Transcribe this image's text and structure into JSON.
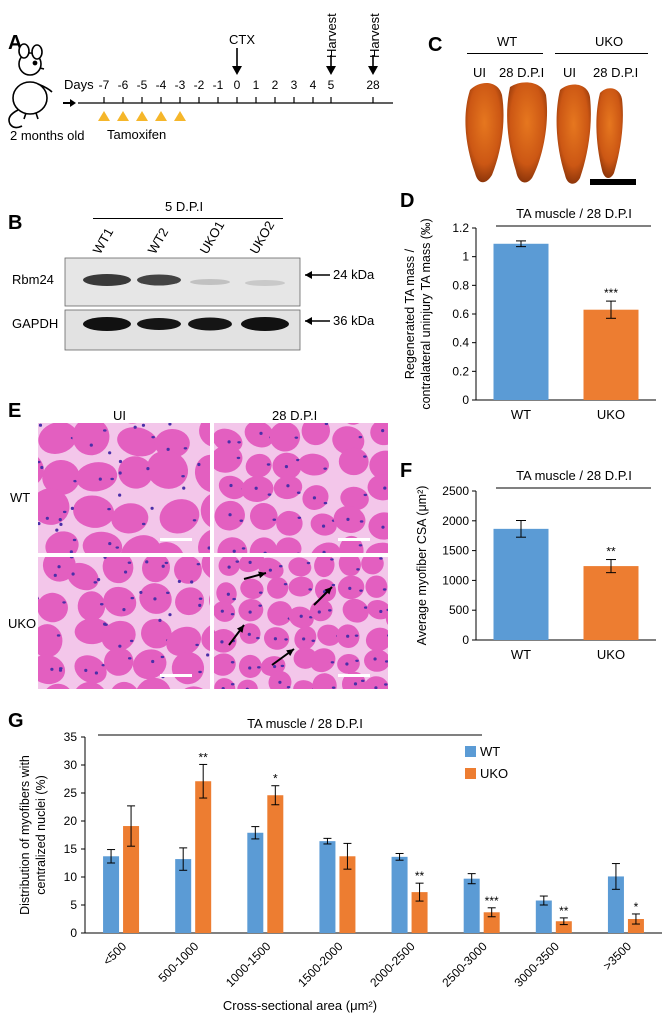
{
  "panel_letters": {
    "a": "A",
    "b": "B",
    "c": "C",
    "d": "D",
    "e": "E",
    "f": "F",
    "g": "G"
  },
  "panel_a": {
    "age": "2 months old",
    "days_label": "Days",
    "days": [
      "-7",
      "-6",
      "-5",
      "-4",
      "-3",
      "-2",
      "-1",
      "0",
      "1",
      "2",
      "3",
      "4",
      "5",
      "28"
    ],
    "treatment": "Tamoxifen",
    "ctx_label": "CTX",
    "harvest_1": "Harvest",
    "harvest_2": "Harvest",
    "colors": {
      "tamoxifen_marker": "#f5b62a"
    }
  },
  "panel_b": {
    "header": "5 D.P.I",
    "lanes": [
      "WT1",
      "WT2",
      "UKO1",
      "UKO2"
    ],
    "rows": [
      "Rbm24",
      "GAPDH"
    ],
    "sizes": [
      "24 kDa",
      "36 kDa"
    ]
  },
  "panel_c": {
    "groups": [
      "WT",
      "UKO"
    ],
    "conditions": [
      "UI",
      "28 D.P.I",
      "UI",
      "28 D.P.I"
    ],
    "colors": {
      "muscle": "#d4621b",
      "muscle_dark": "#a83f0c"
    }
  },
  "panel_e": {
    "col_headers": [
      "UI",
      "28 D.P.I"
    ],
    "row_headers": [
      "WT",
      "UKO"
    ],
    "colors": {
      "tissue": "#e35fc0",
      "membrane": "#f3c6ea",
      "nucleus": "#4a2fa8"
    }
  },
  "colors": {
    "wt": "#5b9bd5",
    "uko": "#ed7d31"
  },
  "chart_data": [
    {
      "id": "D",
      "type": "bar",
      "title": "TA muscle / 28 D.P.I",
      "ylabel": "Regenerated TA mass / contralateral uninjury TA mass (‰)",
      "ylabel_line1": "Regenerated TA mass /",
      "ylabel_line2": "contralateral uninjury TA mass (‰)",
      "categories": [
        "WT",
        "UKO"
      ],
      "values": [
        1.09,
        0.63
      ],
      "errors": [
        0.02,
        0.06
      ],
      "significance": [
        "",
        "***"
      ],
      "ylim": [
        0,
        1.2
      ],
      "yticks": [
        "0",
        "0.2",
        "0.4",
        "0.6",
        "0.8",
        "1",
        "1.2"
      ]
    },
    {
      "id": "F",
      "type": "bar",
      "title": "TA muscle / 28 D.P.I",
      "ylabel": "Average myofiber CSA (μm²)",
      "categories": [
        "WT",
        "UKO"
      ],
      "values": [
        1865,
        1240
      ],
      "errors": [
        140,
        110
      ],
      "significance": [
        "",
        "**"
      ],
      "ylim": [
        0,
        2500
      ],
      "yticks": [
        "0",
        "500",
        "1000",
        "1500",
        "2000",
        "2500"
      ]
    },
    {
      "id": "G",
      "type": "bar",
      "title": "TA muscle / 28 D.P.I",
      "ylabel": "Distribution of myofibers with centralized nuclei (%)",
      "ylabel_line1": "Distribution of myofibers with",
      "ylabel_line2": "centralized nuclei (%)",
      "xlabel": "Cross-sectional area (μm²)",
      "categories": [
        "<500",
        "500-1000",
        "1000-1500",
        "1500-2000",
        "2000-2500",
        "2500-3000",
        "3000-3500",
        ">3500"
      ],
      "series": [
        {
          "name": "WT",
          "values": [
            13.7,
            13.2,
            17.9,
            16.4,
            13.6,
            9.7,
            5.8,
            10.1
          ],
          "errors": [
            1.2,
            2.0,
            1.1,
            0.5,
            0.6,
            0.9,
            0.8,
            2.3
          ],
          "significance": [
            "",
            "",
            "",
            "",
            "",
            "",
            "",
            ""
          ]
        },
        {
          "name": "UKO",
          "values": [
            19.1,
            27.1,
            24.6,
            13.7,
            7.3,
            3.7,
            2.1,
            2.5
          ],
          "errors": [
            3.6,
            3.0,
            1.7,
            2.3,
            1.6,
            0.8,
            0.6,
            0.9
          ],
          "significance": [
            "",
            "**",
            "*",
            "",
            "**",
            "***",
            "**",
            "*"
          ]
        }
      ],
      "ylim": [
        0,
        35
      ],
      "yticks": [
        "0",
        "5",
        "10",
        "15",
        "20",
        "25",
        "30",
        "35"
      ],
      "legend_position": "top-right"
    }
  ]
}
